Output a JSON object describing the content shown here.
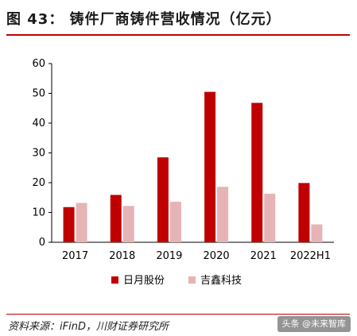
{
  "title": "图 43： 铸件厂商铸件营收情况（亿元）",
  "source": "资料来源：iFinD，川财证券研究所",
  "watermark": "头条 @未来智库",
  "colors": {
    "series1": "#c00000",
    "series2": "#e6b4b4",
    "accent": "#c00000"
  },
  "chart_data": {
    "type": "bar",
    "categories": [
      "2017",
      "2018",
      "2019",
      "2020",
      "2021",
      "2022H1"
    ],
    "series": [
      {
        "name": "日月股份",
        "values": [
          11.8,
          15.9,
          28.5,
          50.5,
          46.8,
          19.9
        ]
      },
      {
        "name": "吉鑫科技",
        "values": [
          13.2,
          12.2,
          13.6,
          18.6,
          16.3,
          6.0
        ]
      }
    ],
    "ylim": [
      0,
      60
    ],
    "yticks": [
      0,
      10,
      20,
      30,
      40,
      50,
      60
    ],
    "legend_position": "bottom",
    "grid": false
  }
}
